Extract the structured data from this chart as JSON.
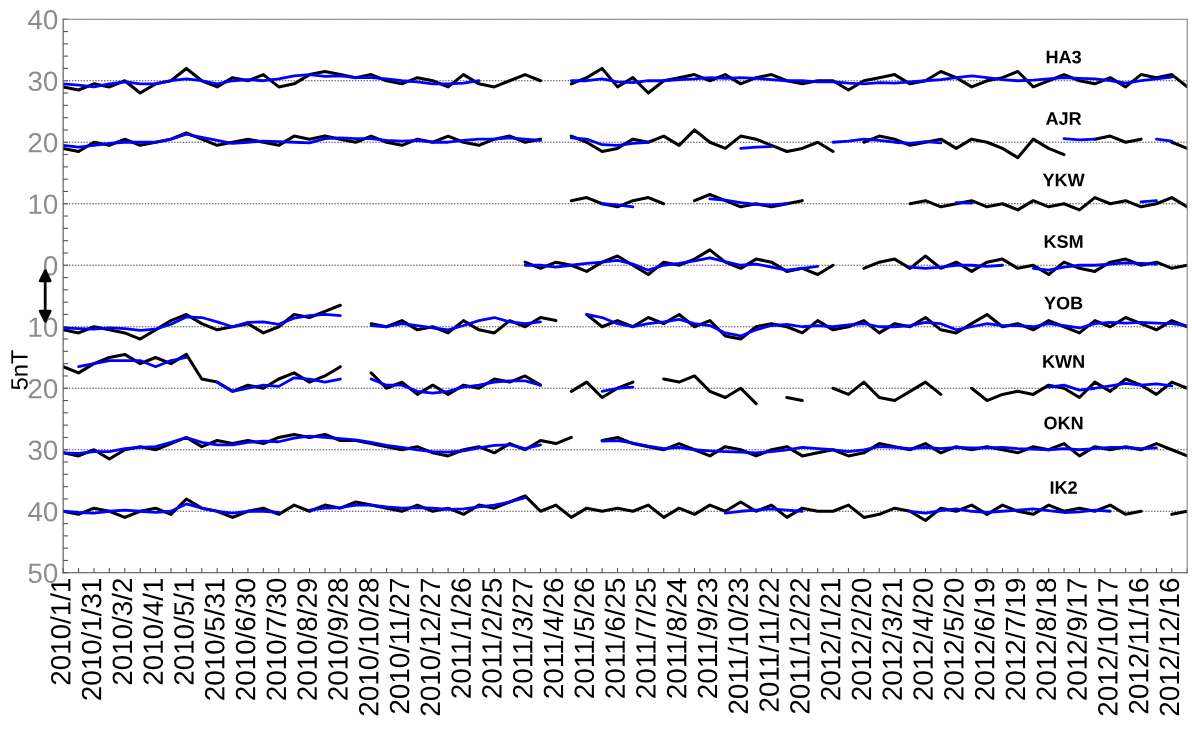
{
  "chart_data": {
    "type": "line",
    "x": [
      "2010-01-01",
      "2010-01-16",
      "2010-01-31",
      "2010-02-15",
      "2010-03-02",
      "2010-03-17",
      "2010-04-01",
      "2010-04-16",
      "2010-05-01",
      "2010-05-16",
      "2010-05-31",
      "2010-06-15",
      "2010-06-30",
      "2010-07-15",
      "2010-07-30",
      "2010-08-14",
      "2010-08-29",
      "2010-09-13",
      "2010-09-28",
      "2010-10-13",
      "2010-10-28",
      "2010-11-12",
      "2010-11-27",
      "2010-12-12",
      "2010-12-27",
      "2011-01-11",
      "2011-01-26",
      "2011-02-10",
      "2011-02-25",
      "2011-03-12",
      "2011-03-27",
      "2011-04-11",
      "2011-04-26",
      "2011-05-11",
      "2011-05-26",
      "2011-06-10",
      "2011-06-25",
      "2011-07-10",
      "2011-07-25",
      "2011-08-09",
      "2011-08-24",
      "2011-09-08",
      "2011-09-23",
      "2011-10-08",
      "2011-10-23",
      "2011-11-07",
      "2011-11-22",
      "2011-12-07",
      "2011-12-22",
      "2012-01-06",
      "2012-01-21",
      "2012-02-05",
      "2012-02-20",
      "2012-03-06",
      "2012-03-21",
      "2012-04-05",
      "2012-04-20",
      "2012-05-05",
      "2012-05-20",
      "2012-06-04",
      "2012-06-19",
      "2012-07-04",
      "2012-07-19",
      "2012-08-03",
      "2012-08-18",
      "2012-09-02",
      "2012-09-17",
      "2012-10-02",
      "2012-10-17",
      "2012-11-01",
      "2012-11-16",
      "2012-12-01",
      "2012-12-16",
      "2012-12-31"
    ],
    "series": [
      {
        "name": "HA3",
        "color": "#000000",
        "values": [
          29,
          28.5,
          29.5,
          29,
          30,
          28,
          29.5,
          30,
          32,
          30,
          29,
          30.5,
          30,
          31,
          29,
          29.5,
          31,
          31.5,
          31,
          30.5,
          31,
          30,
          29.5,
          30.5,
          30,
          29,
          31,
          29.5,
          29,
          30,
          31,
          30,
          null,
          29.5,
          30.5,
          32,
          29,
          30.5,
          28,
          30,
          30.5,
          31,
          30,
          31,
          29.5,
          30.5,
          31,
          30,
          29.5,
          30,
          30,
          28.5,
          30,
          30.5,
          31,
          29.5,
          30,
          31.5,
          30.5,
          29,
          30,
          30.5,
          31.5,
          29,
          30,
          31,
          30,
          29.5,
          30.5,
          29,
          31,
          30.5,
          31,
          29
        ]
      },
      {
        "color": "#0000ff",
        "values": [
          29.5,
          29.3,
          29,
          29.5,
          29.8,
          29.5,
          29.5,
          30,
          30.3,
          30,
          29.5,
          30,
          30.2,
          30,
          30.3,
          30.8,
          31,
          30.7,
          30.8,
          30.5,
          30.5,
          30.3,
          30,
          29.8,
          29.5,
          29.5,
          29.6,
          30,
          null,
          null,
          null,
          null,
          null,
          30,
          30,
          30.3,
          29.8,
          29.7,
          30,
          30,
          30.2,
          30.3,
          30.5,
          30.4,
          30.5,
          30.4,
          30.2,
          30,
          30,
          29.8,
          29.8,
          29.6,
          29.5,
          29.7,
          29.6,
          29.8,
          30,
          30.2,
          30.5,
          30.8,
          30.5,
          30.2,
          30,
          30.1,
          30.3,
          30.5,
          30.4,
          30.3,
          30,
          29.6,
          30,
          30.3,
          30.6,
          null
        ]
      },
      {
        "name": "AJR",
        "color": "#000000",
        "values": [
          19,
          18.5,
          20,
          19.5,
          20.5,
          19.5,
          20,
          20.5,
          21.5,
          20.5,
          19.5,
          20,
          20.5,
          20,
          19.5,
          21,
          20.5,
          21,
          20.5,
          20,
          21,
          20,
          19.5,
          20.5,
          20,
          21,
          20,
          19.5,
          20.5,
          21,
          20,
          20.5,
          null,
          21,
          20,
          18.5,
          19,
          20.5,
          20,
          21,
          19.5,
          22,
          20,
          19,
          21,
          20.5,
          19.5,
          18.5,
          19,
          20,
          18.5,
          null,
          20,
          21,
          20.5,
          19.5,
          20,
          20.5,
          19,
          20.5,
          20,
          19,
          17.5,
          20.5,
          19,
          18,
          null,
          20.5,
          21,
          20,
          20.5,
          null,
          20,
          19
        ]
      },
      {
        "color": "#0000ff",
        "values": [
          19.5,
          19.2,
          19.5,
          19.8,
          20,
          20,
          20,
          20.5,
          21.3,
          20.8,
          20.3,
          19.8,
          20,
          20.2,
          20.1,
          20,
          19.9,
          20.6,
          20.7,
          20.6,
          20.6,
          20.3,
          20.2,
          20.3,
          20,
          20,
          20.3,
          20.5,
          20.5,
          20.7,
          20.5,
          20.3,
          null,
          20.7,
          20.5,
          19.6,
          19.5,
          19.8,
          20,
          null,
          null,
          null,
          null,
          null,
          19,
          19.2,
          19.3,
          null,
          null,
          null,
          20,
          20.2,
          20.5,
          20.3,
          20,
          19.8,
          20.1,
          19.9,
          null,
          null,
          null,
          null,
          null,
          null,
          null,
          20.6,
          20.4,
          20.5,
          null,
          null,
          null,
          20.5,
          20.2,
          null
        ]
      },
      {
        "name": "YKW",
        "color": "#000000",
        "values": [
          null,
          null,
          null,
          null,
          null,
          null,
          null,
          null,
          null,
          null,
          null,
          null,
          null,
          null,
          null,
          null,
          null,
          null,
          null,
          null,
          null,
          null,
          null,
          null,
          null,
          null,
          null,
          null,
          null,
          null,
          null,
          null,
          null,
          10.5,
          11,
          10,
          9.5,
          10.5,
          11,
          10,
          null,
          10.5,
          11.5,
          10.5,
          9.5,
          10,
          9.5,
          10,
          10.5,
          null,
          null,
          null,
          null,
          null,
          null,
          10,
          10.5,
          9.5,
          10,
          10.5,
          9.5,
          10,
          9,
          10.5,
          9.5,
          10,
          9,
          11,
          10,
          10.5,
          9.5,
          10,
          11,
          9.5
        ]
      },
      {
        "color": "#0000ff",
        "values": [
          null,
          null,
          null,
          null,
          null,
          null,
          null,
          null,
          null,
          null,
          null,
          null,
          null,
          null,
          null,
          null,
          null,
          null,
          null,
          null,
          null,
          null,
          null,
          null,
          null,
          null,
          null,
          null,
          null,
          null,
          null,
          null,
          null,
          null,
          null,
          10,
          9.8,
          9.5,
          null,
          null,
          null,
          null,
          10.8,
          10.6,
          10.2,
          9.9,
          9.8,
          10,
          null,
          null,
          null,
          null,
          null,
          null,
          null,
          null,
          null,
          null,
          10.2,
          10.1,
          null,
          null,
          null,
          null,
          null,
          null,
          null,
          null,
          null,
          null,
          10.3,
          10.5,
          null,
          null
        ]
      },
      {
        "name": "KSM",
        "color": "#000000",
        "values": [
          null,
          null,
          null,
          null,
          null,
          null,
          null,
          null,
          null,
          null,
          null,
          null,
          null,
          null,
          null,
          null,
          null,
          null,
          null,
          null,
          null,
          null,
          null,
          null,
          null,
          null,
          null,
          null,
          null,
          null,
          0.5,
          -0.5,
          0.5,
          0,
          -1,
          0.5,
          1.5,
          0,
          -1.5,
          0.5,
          0,
          1,
          2.5,
          0.5,
          -0.5,
          1,
          0.5,
          -1,
          -0.5,
          -1.5,
          0,
          null,
          -0.5,
          0.5,
          1,
          -0.5,
          1.5,
          -0.5,
          0.5,
          -1,
          0.5,
          1,
          -0.5,
          0,
          -1.5,
          0.5,
          -0.5,
          -1,
          0.5,
          1,
          0,
          0.5,
          -0.5,
          0
        ]
      },
      {
        "color": "#0000ff",
        "values": [
          null,
          null,
          null,
          null,
          null,
          null,
          null,
          null,
          null,
          null,
          null,
          null,
          null,
          null,
          null,
          null,
          null,
          null,
          null,
          null,
          null,
          null,
          null,
          null,
          null,
          null,
          null,
          null,
          null,
          null,
          0,
          0,
          -0.3,
          0,
          0.3,
          0.5,
          0.8,
          0.2,
          -0.8,
          0,
          0.3,
          0.7,
          1.2,
          0.6,
          0,
          0.2,
          -0.3,
          -0.8,
          -0.5,
          -0.2,
          null,
          null,
          null,
          null,
          null,
          -0.3,
          -0.5,
          -0.3,
          0,
          0,
          -0.2,
          0,
          null,
          -0.5,
          -0.8,
          -0.3,
          0,
          0,
          0.2,
          0.4,
          0.3,
          0.2,
          null,
          null
        ]
      },
      {
        "name": "YOB",
        "color": "#000000",
        "values": [
          -10.5,
          -11,
          -10,
          -10.5,
          -11,
          -12,
          -10.5,
          -9,
          -8,
          -9.5,
          -10.5,
          -10,
          -9.5,
          -11,
          -10,
          -8,
          -8.5,
          -7.5,
          -6.5,
          null,
          -9.5,
          -10,
          -9,
          -10.5,
          -10,
          -11,
          -9,
          -10.5,
          -11,
          -9,
          -10,
          -8.5,
          -9,
          null,
          -8,
          -10,
          -9,
          -10,
          -8.5,
          -9.5,
          -8,
          -10,
          -9,
          -11.5,
          -12,
          -10,
          -9.5,
          -10,
          -11,
          -9,
          -10.5,
          -10,
          -9,
          -11,
          -9.5,
          -10,
          -8.5,
          -10.5,
          -11,
          -9.5,
          -8,
          -10,
          -9.5,
          -10.5,
          -9,
          -10,
          -11,
          -9,
          -10,
          -8.5,
          -9.5,
          -10.5,
          -9,
          -10
        ]
      },
      {
        "color": "#0000ff",
        "values": [
          -10.2,
          -10.3,
          -10.4,
          -10.2,
          -10.3,
          -10.6,
          -10.4,
          -9.6,
          -8.4,
          -8.5,
          -9.2,
          -10,
          -9.3,
          -9.2,
          -9.6,
          -8.6,
          -8.2,
          -8,
          -8.2,
          null,
          -9.8,
          -10,
          -9.5,
          -9.8,
          -10.2,
          -10.5,
          -9.8,
          -9,
          -8.5,
          -9.2,
          -9.5,
          -9.2,
          null,
          null,
          -8,
          -8.5,
          -9.5,
          -10,
          -9.5,
          -9.2,
          -8.8,
          -9.5,
          -9.8,
          -11,
          -11.5,
          -10.5,
          -9.8,
          -9.6,
          -10,
          -9.8,
          -10,
          -9.7,
          -9.5,
          -10,
          -10,
          -9.8,
          -9.3,
          -9.5,
          -10.5,
          -10,
          -9.5,
          -9.8,
          -9.8,
          -10,
          -9.5,
          -9.8,
          -10.2,
          -9.5,
          -9.3,
          -9.4,
          -9.3,
          -9.4,
          -9.5,
          -9.8
        ]
      },
      {
        "name": "KWN",
        "color": "#000000",
        "values": [
          -16.5,
          -17.5,
          -16,
          -15,
          -14.5,
          -16,
          -15,
          -16,
          -14.5,
          -18.5,
          -19,
          -20.5,
          -19.5,
          -20,
          -18.5,
          -17.5,
          -19,
          -18,
          -16.5,
          null,
          -17.5,
          -20,
          -19,
          -21,
          -19.5,
          -21,
          -19.5,
          -20,
          -18.5,
          -19,
          -18,
          -19.5,
          null,
          -20.5,
          -19,
          -21.5,
          -20,
          -19,
          null,
          -18.5,
          -19,
          -18,
          -20.5,
          -21.5,
          -20,
          -22.5,
          null,
          -21.5,
          -22,
          null,
          -20,
          -21,
          -19,
          -21.5,
          -22,
          -20.5,
          -19,
          -21,
          null,
          -20,
          -22,
          -21,
          -20.5,
          -21,
          -19.5,
          -20,
          -21.5,
          -19,
          -20.5,
          -18.5,
          -19.5,
          -21,
          -19,
          -20
        ]
      },
      {
        "color": "#0000ff",
        "values": [
          null,
          -16.5,
          -16,
          -15.5,
          -15.5,
          -15.5,
          -16.5,
          -15.5,
          -15,
          null,
          -19,
          -20.5,
          -20,
          -19.5,
          -19.7,
          -18.3,
          -18.5,
          -19,
          -18.5,
          null,
          -18.5,
          -19.5,
          -19.5,
          -20.5,
          -20.8,
          -20.5,
          -19.8,
          -19.5,
          -19,
          -18.8,
          -18.8,
          -19.5,
          null,
          null,
          null,
          -20.5,
          -20,
          -19.8,
          null,
          null,
          null,
          null,
          null,
          null,
          null,
          null,
          null,
          null,
          null,
          null,
          null,
          null,
          null,
          null,
          null,
          null,
          null,
          null,
          null,
          null,
          null,
          null,
          null,
          null,
          -19.8,
          -19.5,
          -20.3,
          -20,
          -19.6,
          -19.2,
          -19.5,
          -19.3,
          -19.6,
          null
        ]
      },
      {
        "name": "OKN",
        "color": "#000000",
        "values": [
          -30.5,
          -31,
          -30,
          -31.5,
          -30,
          -29.5,
          -30,
          -29,
          -28,
          -29.5,
          -28.5,
          -29,
          -28.5,
          -29,
          -28,
          -27.5,
          -28,
          -27.5,
          -28.5,
          -28.5,
          -29,
          -29.5,
          -30,
          -29.5,
          -30.5,
          -31,
          -30,
          -29.5,
          -30.5,
          -29,
          -30,
          -28.5,
          -29,
          -28,
          null,
          -28.5,
          -28,
          -29,
          -29.5,
          -30,
          -29,
          -30,
          -31,
          -29.5,
          -30,
          -31,
          -30,
          -29.5,
          -31,
          -30.5,
          -30,
          -31,
          -30.5,
          -29,
          -29.5,
          -30,
          -29,
          -30.5,
          -29.5,
          -30,
          -29.5,
          -30,
          -30.5,
          -29.5,
          -30,
          -29,
          -31,
          -29.5,
          -30,
          -29.5,
          -30,
          -29,
          -30,
          -31
        ]
      },
      {
        "color": "#0000ff",
        "values": [
          -30.5,
          -30.6,
          -30.3,
          -30.3,
          -29.8,
          -29.6,
          -29.5,
          -28.8,
          -28,
          -28.8,
          -29.2,
          -29.2,
          -28.8,
          -28.6,
          -28.7,
          -28.1,
          -27.8,
          -28,
          -28.2,
          -28.4,
          -28.8,
          -29.3,
          -29.6,
          -30,
          -30.3,
          -30.4,
          -30.2,
          -29.7,
          -29.3,
          -29.2,
          -29.8,
          -29.2,
          null,
          null,
          null,
          -28.6,
          -28.5,
          -28.9,
          -29.4,
          -29.8,
          -29.6,
          -30,
          -30.2,
          -30.3,
          -30.4,
          -30.5,
          -30.3,
          -30,
          -29.6,
          -29.8,
          -30,
          -30.3,
          -30,
          -29.5,
          -29.6,
          -29.8,
          -29.6,
          -29.8,
          -29.6,
          -29.7,
          -29.7,
          -29.6,
          -29.8,
          -29.9,
          -30,
          -29.8,
          -30,
          -29.8,
          -29.6,
          -29.6,
          -29.8,
          -29.7,
          null,
          null
        ]
      },
      {
        "name": "IK2",
        "color": "#000000",
        "values": [
          -40,
          -40.5,
          -39.5,
          -40,
          -41,
          -40,
          -39.5,
          -40.5,
          -38,
          -39.5,
          -40,
          -41,
          -40,
          -39.5,
          -40.5,
          -39,
          -40,
          -39,
          -39.5,
          -38.5,
          -39,
          -39.5,
          -40,
          -39,
          -40,
          -39.5,
          -40.5,
          -39,
          -39.5,
          -38.5,
          -37.5,
          -40,
          -39,
          -41,
          -39.5,
          -40,
          -39.5,
          -40,
          -39,
          -41,
          -39.5,
          -40.5,
          -39,
          -40,
          -38.5,
          -40,
          -39,
          -41,
          -39.5,
          -40,
          -40,
          -39,
          -41,
          -40.5,
          -39.5,
          -40,
          -41.5,
          -39.5,
          -40,
          -39,
          -40.5,
          -39,
          -40,
          -40.5,
          -39,
          -40,
          -39.5,
          -40,
          -39,
          -40.5,
          -40,
          null,
          -40.5,
          -40
        ]
      },
      {
        "color": "#0000ff",
        "values": [
          -40,
          -40.2,
          -40.3,
          -40,
          -39.8,
          -40,
          -40.2,
          -40,
          -38.8,
          -39.5,
          -40,
          -40.3,
          -40,
          -40,
          -40.2,
          null,
          -39.8,
          -39.5,
          -39.4,
          -39,
          -39,
          -39.3,
          -39.5,
          -39.4,
          -39.5,
          -39.7,
          -39.6,
          -39.3,
          -39,
          -38.5,
          -37.8,
          null,
          null,
          null,
          null,
          null,
          null,
          null,
          null,
          null,
          null,
          null,
          null,
          -40.3,
          -40,
          -39.8,
          -39.6,
          -39.8,
          -40,
          null,
          null,
          null,
          null,
          null,
          null,
          -40,
          -40.3,
          -39.9,
          -39.6,
          -40,
          -40.2,
          -40,
          -39.8,
          -39.6,
          -39.9,
          -40.2,
          -40.1,
          -39.8,
          -40,
          null,
          null,
          null,
          null,
          null
        ]
      }
    ],
    "xlim": [
      "2010-01-01",
      "2012-12-31"
    ],
    "xticks": [
      {
        "value": "2010-01-01",
        "label": "2010/1/1"
      },
      {
        "value": "2010-01-16",
        "label": null
      },
      {
        "value": "2010-01-31",
        "label": "2010/1/31"
      },
      {
        "value": "2010-02-15",
        "label": null
      },
      {
        "value": "2010-03-02",
        "label": "2010/3/2"
      },
      {
        "value": "2010-03-17",
        "label": null
      },
      {
        "value": "2010-04-01",
        "label": "2010/4/1"
      },
      {
        "value": "2010-04-16",
        "label": null
      },
      {
        "value": "2010-05-01",
        "label": "2010/5/1"
      },
      {
        "value": "2010-05-16",
        "label": null
      },
      {
        "value": "2010-05-31",
        "label": "2010/5/31"
      },
      {
        "value": "2010-06-15",
        "label": null
      },
      {
        "value": "2010-06-30",
        "label": "2010/6/30"
      },
      {
        "value": "2010-07-15",
        "label": null
      },
      {
        "value": "2010-07-30",
        "label": "2010/7/30"
      },
      {
        "value": "2010-08-14",
        "label": null
      },
      {
        "value": "2010-08-29",
        "label": "2010/8/29"
      },
      {
        "value": "2010-09-13",
        "label": null
      },
      {
        "value": "2010-09-28",
        "label": "2010/9/28"
      },
      {
        "value": "2010-10-13",
        "label": null
      },
      {
        "value": "2010-10-28",
        "label": "2010/10/28"
      },
      {
        "value": "2010-11-12",
        "label": null
      },
      {
        "value": "2010-11-27",
        "label": "2010/11/27"
      },
      {
        "value": "2010-12-12",
        "label": null
      },
      {
        "value": "2010-12-27",
        "label": "2010/12/27"
      },
      {
        "value": "2011-01-11",
        "label": null
      },
      {
        "value": "2011-01-26",
        "label": "2011/1/26"
      },
      {
        "value": "2011-02-10",
        "label": null
      },
      {
        "value": "2011-02-25",
        "label": "2011/2/25"
      },
      {
        "value": "2011-03-12",
        "label": null
      },
      {
        "value": "2011-03-27",
        "label": "2011/3/27"
      },
      {
        "value": "2011-04-11",
        "label": null
      },
      {
        "value": "2011-04-26",
        "label": "2011/4/26"
      },
      {
        "value": "2011-05-11",
        "label": null
      },
      {
        "value": "2011-05-26",
        "label": "2011/5/26"
      },
      {
        "value": "2011-06-10",
        "label": null
      },
      {
        "value": "2011-06-25",
        "label": "2011/6/25"
      },
      {
        "value": "2011-07-10",
        "label": null
      },
      {
        "value": "2011-07-25",
        "label": "2011/7/25"
      },
      {
        "value": "2011-08-09",
        "label": null
      },
      {
        "value": "2011-08-24",
        "label": "2011/8/24"
      },
      {
        "value": "2011-09-08",
        "label": null
      },
      {
        "value": "2011-09-23",
        "label": "2011/9/23"
      },
      {
        "value": "2011-10-08",
        "label": null
      },
      {
        "value": "2011-10-23",
        "label": "2011/10/23"
      },
      {
        "value": "2011-11-07",
        "label": null
      },
      {
        "value": "2011-11-22",
        "label": "2011/11/22"
      },
      {
        "value": "2011-12-07",
        "label": null
      },
      {
        "value": "2011-12-22",
        "label": "2011/12/22"
      },
      {
        "value": "2012-01-06",
        "label": null
      },
      {
        "value": "2012-01-21",
        "label": "2012/1/21"
      },
      {
        "value": "2012-02-05",
        "label": null
      },
      {
        "value": "2012-02-20",
        "label": "2012/2/20"
      },
      {
        "value": "2012-03-06",
        "label": null
      },
      {
        "value": "2012-03-21",
        "label": "2012/3/21"
      },
      {
        "value": "2012-04-05",
        "label": null
      },
      {
        "value": "2012-04-20",
        "label": "2012/4/20"
      },
      {
        "value": "2012-05-05",
        "label": null
      },
      {
        "value": "2012-05-20",
        "label": "2012/5/20"
      },
      {
        "value": "2012-06-04",
        "label": null
      },
      {
        "value": "2012-06-19",
        "label": "2012/6/19"
      },
      {
        "value": "2012-07-04",
        "label": null
      },
      {
        "value": "2012-07-19",
        "label": "2012/7/19"
      },
      {
        "value": "2012-08-03",
        "label": null
      },
      {
        "value": "2012-08-18",
        "label": "2012/8/18"
      },
      {
        "value": "2012-09-02",
        "label": null
      },
      {
        "value": "2012-09-17",
        "label": "2012/9/17"
      },
      {
        "value": "2012-10-02",
        "label": null
      },
      {
        "value": "2012-10-17",
        "label": "2012/10/17"
      },
      {
        "value": "2012-11-01",
        "label": null
      },
      {
        "value": "2012-11-16",
        "label": "2012/11/16"
      },
      {
        "value": "2012-12-01",
        "label": null
      },
      {
        "value": "2012-12-16",
        "label": "2012/12/16"
      },
      {
        "value": "2012-12-31",
        "label": null
      }
    ],
    "ylim": [
      -50,
      40
    ],
    "yticks": [
      40,
      {
        "value": 38,
        "label": null
      },
      {
        "value": 36,
        "label": null
      },
      {
        "value": 34,
        "label": null
      },
      {
        "value": 32,
        "label": null
      },
      30,
      {
        "value": 28,
        "label": null
      },
      {
        "value": 26,
        "label": null
      },
      {
        "value": 24,
        "label": null
      },
      {
        "value": 22,
        "label": null
      },
      20,
      {
        "value": 18,
        "label": null
      },
      {
        "value": 16,
        "label": null
      },
      {
        "value": 14,
        "label": null
      },
      {
        "value": 12,
        "label": null
      },
      10,
      {
        "value": 8,
        "label": null
      },
      {
        "value": 6,
        "label": null
      },
      {
        "value": 4,
        "label": null
      },
      {
        "value": 2,
        "label": null
      },
      0,
      {
        "value": -2,
        "label": null
      },
      {
        "value": -4,
        "label": null
      },
      {
        "value": -6,
        "label": null
      },
      {
        "value": -8,
        "label": null
      },
      {
        "value": -10,
        "label": "10"
      },
      {
        "value": -12,
        "label": null
      },
      {
        "value": -14,
        "label": null
      },
      {
        "value": -16,
        "label": null
      },
      {
        "value": -18,
        "label": null
      },
      {
        "value": -20,
        "label": "20"
      },
      {
        "value": -22,
        "label": null
      },
      {
        "value": -24,
        "label": null
      },
      {
        "value": -26,
        "label": null
      },
      {
        "value": -28,
        "label": null
      },
      {
        "value": -30,
        "label": "30"
      },
      {
        "value": -32,
        "label": null
      },
      {
        "value": -34,
        "label": null
      },
      {
        "value": -36,
        "label": null
      },
      {
        "value": -38,
        "label": null
      },
      {
        "value": -40,
        "label": "40"
      },
      {
        "value": -42,
        "label": null
      },
      {
        "value": -44,
        "label": null
      },
      {
        "value": -46,
        "label": null
      },
      {
        "value": -48,
        "label": null
      },
      {
        "value": -50,
        "label": "50"
      }
    ],
    "grid": "y",
    "legend": false,
    "annotations": [
      "5nT"
    ]
  }
}
